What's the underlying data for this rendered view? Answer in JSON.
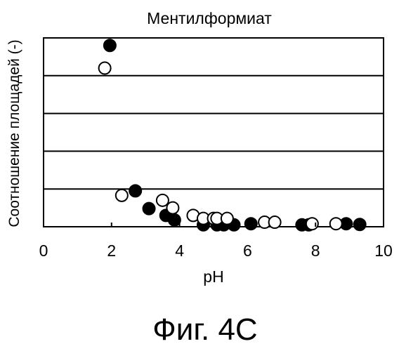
{
  "chart_data": {
    "type": "scatter",
    "title": "Ментилформиат",
    "xlabel": "pH",
    "ylabel": "Соотношение площадей (-)",
    "xlim": [
      0,
      10
    ],
    "ylim": [
      0,
      5
    ],
    "x_ticks": [
      0,
      2,
      4,
      6,
      8,
      10
    ],
    "x_tick_labels": [
      "0",
      "2",
      "4",
      "6",
      "8",
      "10"
    ],
    "grid": "horizontal",
    "y_gridlines": [
      1,
      2,
      3,
      4
    ],
    "marker_colors": {
      "filled": "#000000",
      "open": "#ffffff"
    },
    "series": [
      {
        "marker": "filled-circle",
        "points": [
          [
            1.95,
            4.8
          ],
          [
            2.7,
            0.95
          ],
          [
            3.1,
            0.48
          ],
          [
            3.6,
            0.3
          ],
          [
            3.85,
            0.18
          ],
          [
            4.7,
            0.05
          ],
          [
            5.1,
            0.05
          ],
          [
            5.3,
            0.05
          ],
          [
            5.6,
            0.05
          ],
          [
            6.1,
            0.08
          ],
          [
            7.6,
            0.05
          ],
          [
            7.8,
            0.05
          ],
          [
            8.9,
            0.08
          ],
          [
            9.3,
            0.06
          ]
        ]
      },
      {
        "marker": "open-circle",
        "points": [
          [
            1.8,
            4.2
          ],
          [
            2.3,
            0.83
          ],
          [
            3.5,
            0.7
          ],
          [
            3.8,
            0.5
          ],
          [
            4.4,
            0.3
          ],
          [
            4.7,
            0.22
          ],
          [
            5.0,
            0.22
          ],
          [
            5.1,
            0.22
          ],
          [
            5.4,
            0.22
          ],
          [
            6.5,
            0.12
          ],
          [
            6.8,
            0.12
          ],
          [
            7.9,
            0.08
          ],
          [
            8.6,
            0.08
          ]
        ]
      }
    ]
  },
  "caption": "Фиг. 4С"
}
